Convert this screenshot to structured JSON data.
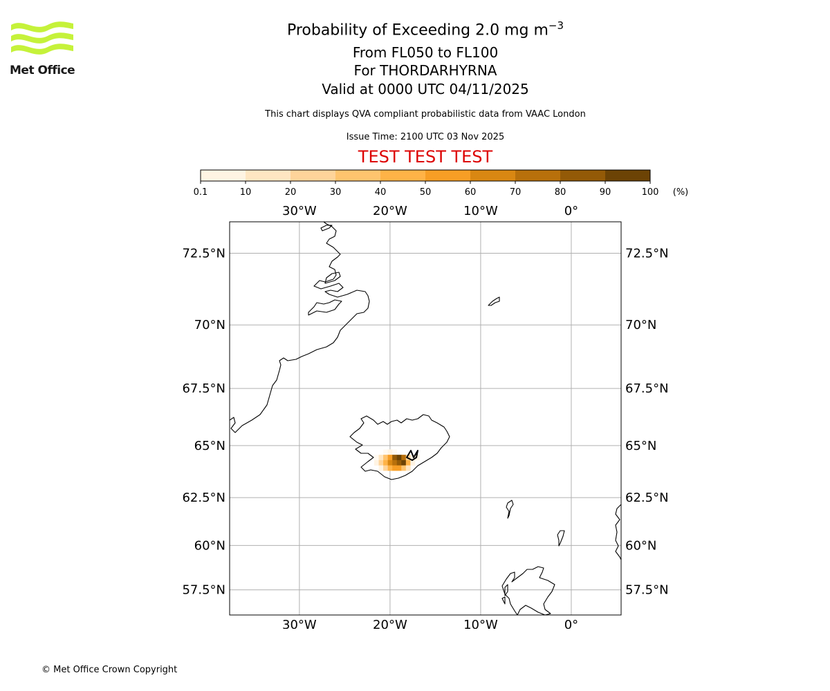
{
  "logo": {
    "text": "Met Office",
    "color": "#c5f23a"
  },
  "header": {
    "title": "Probability of Exceeding 2.0 mg m",
    "title_superscript": "−3",
    "levels": "From FL050 to FL100",
    "volcano": "For THORDARHYRNA",
    "valid": "Valid at 0000 UTC 04/11/2025",
    "note": "This chart displays QVA compliant probabilistic data from VAAC London",
    "issue_time": "Issue Time: 2100 UTC 03 Nov 2025",
    "test_banner": "TEST TEST TEST",
    "test_color": "#dd0000"
  },
  "colorbar": {
    "ticks": [
      "0.1",
      "10",
      "20",
      "30",
      "40",
      "50",
      "60",
      "70",
      "80",
      "90",
      "100"
    ],
    "unit": "(%)",
    "colors": [
      "#fff4e3",
      "#ffe6c2",
      "#ffd49a",
      "#ffc46e",
      "#ffb347",
      "#f79e25",
      "#d98712",
      "#b8700b",
      "#935a07",
      "#6c4305"
    ]
  },
  "map": {
    "lon_labels": [
      "30°W",
      "20°W",
      "10°W",
      "0°"
    ],
    "lat_labels": [
      "72.5°N",
      "70°N",
      "67.5°N",
      "65°N",
      "62.5°N",
      "60°N",
      "57.5°N"
    ],
    "lon_range": [
      -37.7,
      5.5
    ],
    "lat_range": [
      56.0,
      73.5
    ],
    "plume_cells": [
      {
        "lon": -20.5,
        "lat": 64.7,
        "p": 0.05
      },
      {
        "lon": -20.0,
        "lat": 64.7,
        "p": 0.1
      },
      {
        "lon": -19.5,
        "lat": 64.7,
        "p": 0.05
      },
      {
        "lon": -21.5,
        "lat": 64.45,
        "p": 0.05
      },
      {
        "lon": -21.0,
        "lat": 64.45,
        "p": 15
      },
      {
        "lon": -20.5,
        "lat": 64.45,
        "p": 35
      },
      {
        "lon": -20.0,
        "lat": 64.45,
        "p": 55
      },
      {
        "lon": -19.5,
        "lat": 64.45,
        "p": 85
      },
      {
        "lon": -19.0,
        "lat": 64.45,
        "p": 92
      },
      {
        "lon": -18.5,
        "lat": 64.45,
        "p": 75
      },
      {
        "lon": -18.0,
        "lat": 64.45,
        "p": 25
      },
      {
        "lon": -17.5,
        "lat": 64.45,
        "p": 5
      },
      {
        "lon": -17.0,
        "lat": 64.45,
        "p": 2
      },
      {
        "lon": -21.5,
        "lat": 64.2,
        "p": 5
      },
      {
        "lon": -21.0,
        "lat": 64.2,
        "p": 20
      },
      {
        "lon": -20.5,
        "lat": 64.2,
        "p": 45
      },
      {
        "lon": -20.0,
        "lat": 64.2,
        "p": 65
      },
      {
        "lon": -19.5,
        "lat": 64.2,
        "p": 75
      },
      {
        "lon": -19.0,
        "lat": 64.2,
        "p": 82
      },
      {
        "lon": -18.5,
        "lat": 64.2,
        "p": 95
      },
      {
        "lon": -18.0,
        "lat": 64.2,
        "p": 45
      },
      {
        "lon": -17.5,
        "lat": 64.2,
        "p": 8
      },
      {
        "lon": -21.0,
        "lat": 63.95,
        "p": 8
      },
      {
        "lon": -20.5,
        "lat": 63.95,
        "p": 25
      },
      {
        "lon": -20.0,
        "lat": 63.95,
        "p": 45
      },
      {
        "lon": -19.5,
        "lat": 63.95,
        "p": 55
      },
      {
        "lon": -19.0,
        "lat": 63.95,
        "p": 50
      },
      {
        "lon": -18.5,
        "lat": 63.95,
        "p": 35
      },
      {
        "lon": -18.0,
        "lat": 63.95,
        "p": 12
      }
    ]
  },
  "footer": {
    "copyright": "© Met Office Crown Copyright"
  }
}
